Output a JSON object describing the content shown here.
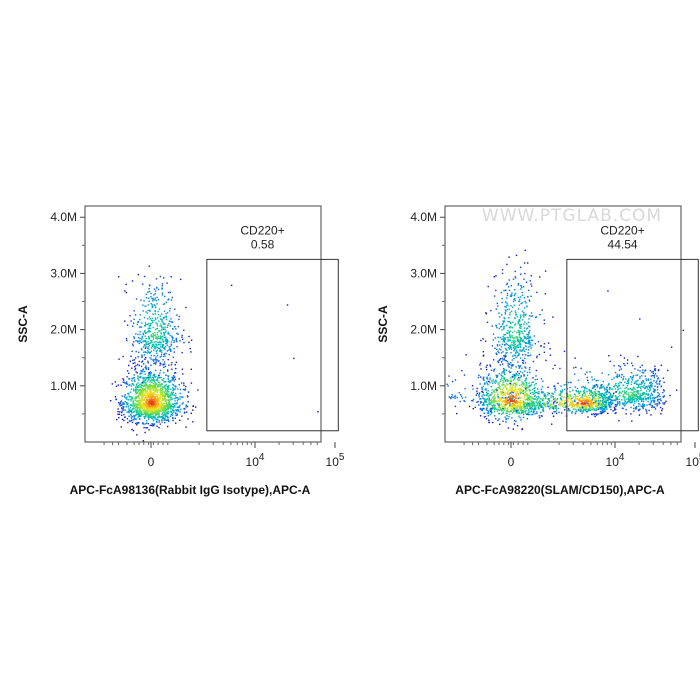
{
  "watermark": "WWW.PTGLAB.COM",
  "chart_data": [
    {
      "type": "scatter",
      "title": "",
      "xlabel": "APC-FcA98136(Rabbit IgG Isotype),APC-A",
      "ylabel": "SSC-A",
      "x_ticks": [
        {
          "label": "0",
          "value": 0
        },
        {
          "label": "10",
          "exp": "4",
          "value": 10000
        },
        {
          "label": "10",
          "exp": "5",
          "value": 100000
        }
      ],
      "y_ticks": [
        "1.0M",
        "2.0M",
        "3.0M",
        "4.0M"
      ],
      "ylim": [
        0,
        4200000
      ],
      "gate": {
        "name": "CD220+",
        "percent": "0.58",
        "x_range": [
          2500,
          110000
        ],
        "y_range": [
          200000,
          3250000
        ]
      },
      "populations": [
        {
          "x_center": 0,
          "y_center": 700000,
          "x_spread": 600,
          "y_spread": 300000,
          "count": 1500
        },
        {
          "x_center": 150,
          "y_center": 1900000,
          "x_spread": 500,
          "y_spread": 500000,
          "count": 500
        }
      ],
      "outliers": [
        [
          5000,
          2800000
        ],
        [
          25000,
          2450000
        ],
        [
          30000,
          1500000
        ],
        [
          60000,
          550000
        ]
      ]
    },
    {
      "type": "scatter",
      "title": "",
      "xlabel": "APC-FcA98220(SLAM/CD150),APC-A",
      "ylabel": "SSC-A",
      "x_ticks": [
        {
          "label": "0",
          "value": 0
        },
        {
          "label": "10",
          "exp": "4",
          "value": 10000
        },
        {
          "label": "10",
          "exp": "5",
          "value": 100000
        }
      ],
      "y_ticks": [
        "1.0M",
        "2.0M",
        "3.0M",
        "4.0M"
      ],
      "ylim": [
        0,
        4200000
      ],
      "gate": {
        "name": "CD220+",
        "percent": "44.54",
        "x_range": [
          2500,
          110000
        ],
        "y_range": [
          200000,
          3250000
        ]
      },
      "populations": [
        {
          "x_center": 0,
          "y_center": 750000,
          "x_spread": 700,
          "y_spread": 300000,
          "count": 900
        },
        {
          "x_center": 150,
          "y_center": 1900000,
          "x_spread": 500,
          "y_spread": 550000,
          "count": 500
        },
        {
          "x_center": 4000,
          "y_center": 700000,
          "x_spread": 2500,
          "y_spread": 150000,
          "count": 700
        },
        {
          "x_center": 15000,
          "y_center": 850000,
          "x_spread": 12000,
          "y_spread": 250000,
          "count": 700
        }
      ],
      "outliers": [
        [
          8000,
          2700000
        ],
        [
          20000,
          2200000
        ],
        [
          50000,
          1700000
        ],
        [
          70000,
          2000000
        ]
      ]
    }
  ]
}
